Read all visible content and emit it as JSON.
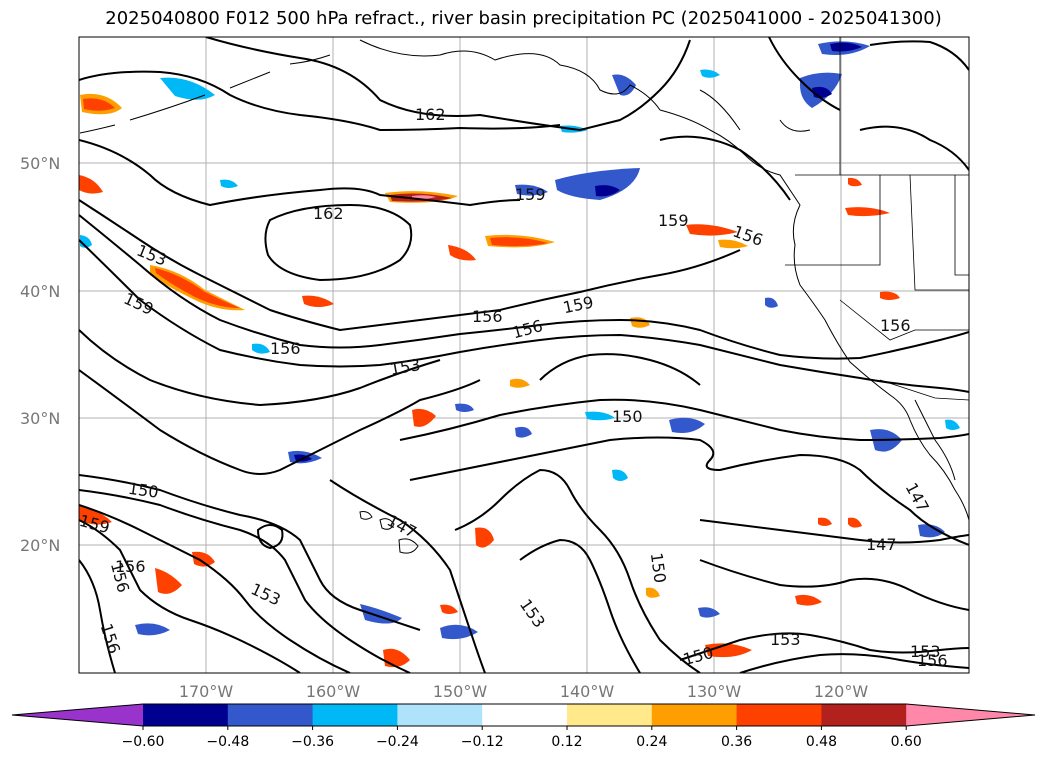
{
  "title": "2025040800 F012 500 hPa refract., river basin precipitation PC (2025041000 - 2025041300)",
  "lat_labels": [
    "50°N",
    "40°N",
    "30°N",
    "20°N"
  ],
  "lon_labels": [
    "170°W",
    "160°W",
    "150°W",
    "140°W",
    "130°W",
    "120°W"
  ],
  "contour_labels": [
    "162",
    "162",
    "159",
    "159",
    "159",
    "159",
    "156",
    "156",
    "156",
    "156",
    "156",
    "153",
    "153",
    "153",
    "150",
    "150",
    "150",
    "150",
    "147",
    "147",
    "147",
    "153",
    "156",
    "159",
    "156",
    "156",
    "153",
    "153",
    "156"
  ],
  "colorbar": {
    "tick_labels": [
      "−0.60",
      "−0.48",
      "−0.36",
      "−0.24",
      "−0.12",
      "0.12",
      "0.24",
      "0.36",
      "0.48",
      "0.60"
    ],
    "colors": [
      "#9933cc",
      "#000090",
      "#3358cc",
      "#00b8f5",
      "#aee3fb",
      "#ffffff",
      "#ffe98a",
      "#ff9e00",
      "#ff4100",
      "#b3211e",
      "#ff88aa"
    ]
  }
}
